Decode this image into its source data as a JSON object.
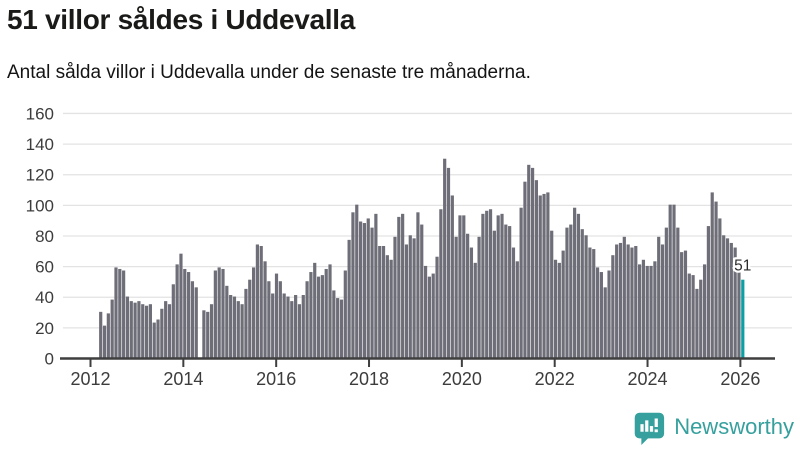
{
  "header": {
    "title": "51 villor såldes i Uddevalla",
    "subtitle": "Antal sålda villor i Uddevalla under de senaste tre månaderna."
  },
  "footer": {
    "brand": "Newsworthy"
  },
  "chart_data": {
    "type": "bar",
    "title": "51 villor såldes i Uddevalla",
    "subtitle": "Antal sålda villor i Uddevalla under de senaste tre månaderna.",
    "x_start": "2012-01",
    "x_interval": "monthly",
    "x_tick_labels": [
      "2012",
      "2014",
      "2016",
      "2018",
      "2020",
      "2022",
      "2024",
      "2026"
    ],
    "y_tick_labels": [
      0,
      20,
      40,
      60,
      80,
      100,
      120,
      140,
      160
    ],
    "ylim": [
      0,
      160
    ],
    "grid": true,
    "legend": "none",
    "values": [
      30,
      21,
      29,
      38,
      59,
      58,
      57,
      40,
      37,
      36,
      37,
      35,
      34,
      35,
      23,
      25,
      32,
      37,
      35,
      48,
      61,
      68,
      58,
      56,
      50,
      46,
      null,
      31,
      30,
      35,
      57,
      59,
      58,
      47,
      41,
      40,
      37,
      35,
      45,
      51,
      59,
      74,
      73,
      63,
      50,
      42,
      55,
      50,
      42,
      40,
      37,
      41,
      35,
      41,
      50,
      56,
      62,
      53,
      54,
      58,
      61,
      44,
      39,
      38,
      57,
      77,
      95,
      100,
      89,
      88,
      91,
      85,
      94,
      73,
      73,
      67,
      64,
      79,
      92,
      94,
      74,
      80,
      78,
      95,
      87,
      60,
      53,
      55,
      66,
      97,
      130,
      124,
      106,
      79,
      93,
      93,
      81,
      72,
      62,
      79,
      94,
      96,
      97,
      83,
      93,
      94,
      87,
      86,
      72,
      63,
      98,
      115,
      126,
      124,
      116,
      106,
      107,
      108,
      83,
      64,
      62,
      70,
      85,
      87,
      98,
      94,
      84,
      80,
      72,
      71,
      59,
      56,
      46,
      57,
      67,
      74,
      75,
      79,
      74,
      72,
      73,
      61,
      64,
      60,
      60,
      63,
      79,
      74,
      85,
      100,
      100,
      85,
      69,
      70,
      55,
      54,
      45,
      51,
      61,
      86,
      108,
      102,
      91,
      80,
      78,
      75,
      72,
      57,
      51
    ],
    "highlight_last": true,
    "annotation": {
      "text": "51",
      "value": 51
    },
    "bar_color": "#6e6e78",
    "highlight_color": "#0aa0a5",
    "grid_color": "#e3e3e3",
    "axis_color": "#3f3f3f",
    "label_color": "#3c3c3c",
    "annotation_text_color": "#2b2b2b",
    "annotation_halo_color": "#ffffff"
  }
}
